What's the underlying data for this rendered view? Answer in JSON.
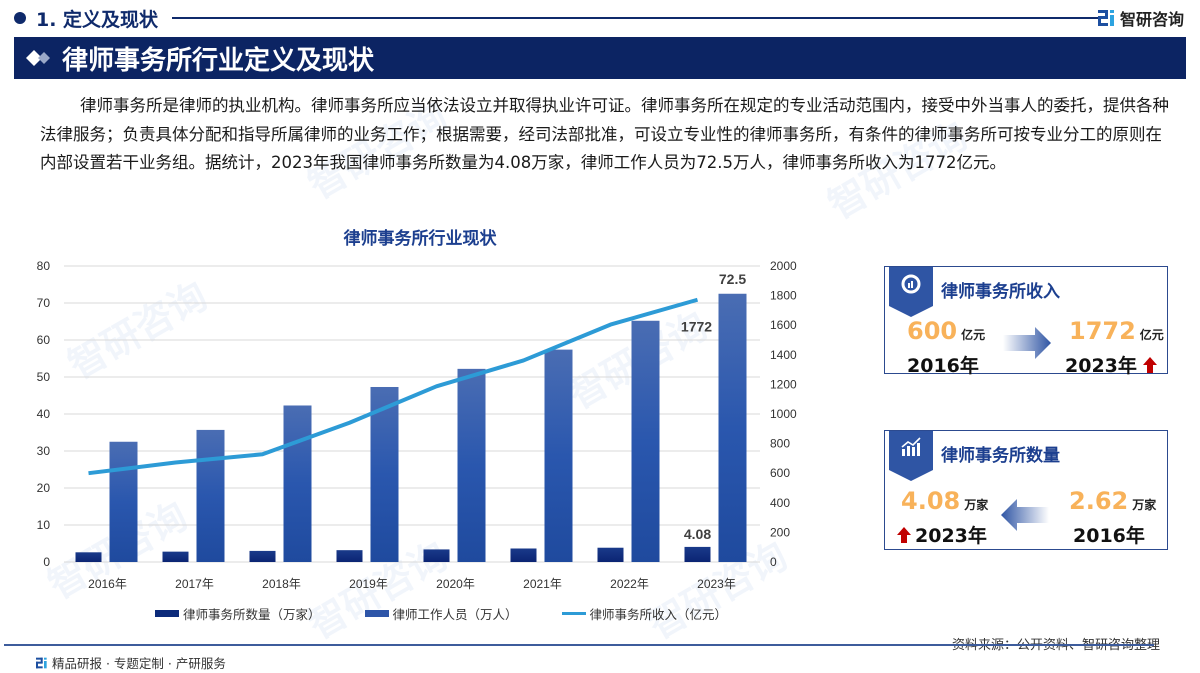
{
  "header": {
    "section_title": "1. 定义及现状",
    "logo_text": "智研咨询",
    "banner_title": "律师事务所行业定义及现状"
  },
  "paragraph": "律师事务所是律师的执业机构。律师事务所应当依法设立并取得执业许可证。律师事务所在规定的专业活动范围内，接受中外当事人的委托，提供各种法律服务；负责具体分配和指导所属律师的业务工作；根据需要，经司法部批准，可设立专业性的律师事务所，有条件的律师事务所可按专业分工的原则在内部设置若干业务组。据统计，2023年我国律师事务所数量为4.08万家，律师工作人员为72.5万人，律师事务所收入为1772亿元。",
  "chart_data": {
    "type": "bar",
    "title": "律师事务所行业现状",
    "categories": [
      "2016年",
      "2017年",
      "2018年",
      "2019年",
      "2020年",
      "2021年",
      "2022年",
      "2023年"
    ],
    "series": [
      {
        "name": "律师事务所数量（万家）",
        "type": "bar",
        "axis": "left",
        "color": "#0c2a7a",
        "values": [
          2.62,
          2.8,
          3.0,
          3.2,
          3.4,
          3.65,
          3.86,
          4.08
        ]
      },
      {
        "name": "律师工作人员（万人）",
        "type": "bar",
        "axis": "left",
        "color": "#2e55a8",
        "values": [
          32.5,
          35.7,
          42.3,
          47.3,
          52.2,
          57.4,
          65.2,
          72.5
        ]
      },
      {
        "name": "律师事务所收入（亿元）",
        "type": "line",
        "axis": "right",
        "color": "#2d9bd6",
        "values": [
          600,
          672,
          728,
          941,
          1187,
          1362,
          1604,
          1772
        ]
      }
    ],
    "ylim_left": [
      0,
      80
    ],
    "yticks_left": [
      0,
      10,
      20,
      30,
      40,
      50,
      60,
      70,
      80
    ],
    "ylim_right": [
      0,
      2000
    ],
    "yticks_right": [
      0,
      200,
      400,
      600,
      800,
      1000,
      1200,
      1400,
      1600,
      1800,
      2000
    ],
    "data_labels": {
      "firms_2023": "4.08",
      "lawyers_2023": "72.5",
      "revenue_2023": "1772"
    },
    "grid": true,
    "legend_position": "bottom"
  },
  "cards": {
    "revenue": {
      "title": "律师事务所收入",
      "from_value": "600",
      "from_unit": "亿元",
      "from_year": "2016年",
      "to_value": "1772",
      "to_unit": "亿元",
      "to_year": "2023年"
    },
    "count": {
      "title": "律师事务所数量",
      "to_value": "4.08",
      "to_unit": "万家",
      "to_year": "2023年",
      "from_value": "2.62",
      "from_unit": "万家",
      "from_year": "2016年"
    }
  },
  "footer": {
    "left": "精品研报 · 专题定制 · 产研服务",
    "right": "资料来源：公开资料、智研咨询整理"
  }
}
